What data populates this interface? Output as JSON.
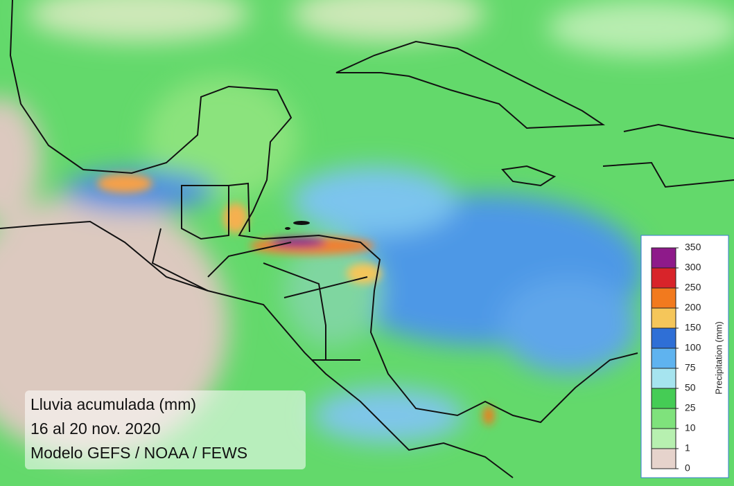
{
  "caption": {
    "lines": [
      "Lluvia acumulada (mm)",
      "16 al 20 nov. 2020",
      "Modelo GEFS / NOAA / FEWS"
    ]
  },
  "legend": {
    "title": "Precipitation (mm)",
    "ticks": [
      0,
      1,
      10,
      25,
      50,
      75,
      100,
      150,
      200,
      250,
      300,
      350
    ],
    "colors": [
      "#e6d3cc",
      "#b7f0b0",
      "#7fe27c",
      "#45cc55",
      "#a6e4ef",
      "#5fb3ef",
      "#2f6fd6",
      "#f5c65a",
      "#f27a1e",
      "#d8242a",
      "#8e1a8a"
    ]
  }
}
